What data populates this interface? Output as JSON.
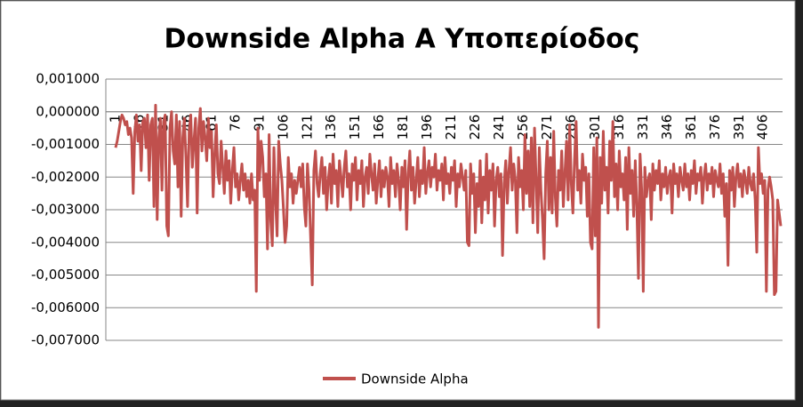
{
  "chart_data": {
    "type": "line",
    "title": "Downside Alpha A Υποπερίοδος",
    "categories": [
      "1",
      null,
      null,
      null,
      null,
      null,
      null,
      null,
      null,
      null,
      null,
      null,
      null,
      null,
      null,
      "16",
      null,
      null,
      null,
      null,
      null,
      null,
      null,
      null,
      null,
      null,
      null,
      null,
      null,
      null,
      "31",
      null,
      null,
      null,
      null,
      null,
      null,
      null,
      null,
      null,
      null,
      null,
      null,
      null,
      null,
      "46",
      null,
      null,
      null,
      null,
      null,
      null,
      null,
      null,
      null,
      null,
      null,
      null,
      null,
      null,
      "61",
      null,
      null,
      null,
      null,
      null,
      null,
      null,
      null,
      null,
      null,
      null,
      null,
      null,
      null,
      "76",
      null,
      null,
      null,
      null,
      null,
      null,
      null,
      null,
      null,
      null,
      null,
      null,
      null,
      null,
      "91",
      null,
      null,
      null,
      null,
      null,
      null,
      null,
      null,
      null,
      null,
      null,
      null,
      null,
      null,
      "106",
      null,
      null,
      null,
      null,
      null,
      null,
      null,
      null,
      null,
      null,
      null,
      null,
      null,
      null,
      "121",
      null,
      null,
      null,
      null,
      null,
      null,
      null,
      null,
      null,
      null,
      null,
      null,
      null,
      null,
      "136",
      null,
      null,
      null,
      null,
      null,
      null,
      null,
      null,
      null,
      null,
      null,
      null,
      null,
      null,
      "151",
      null,
      null,
      null,
      null,
      null,
      null,
      null,
      null,
      null,
      null,
      null,
      null,
      null,
      null,
      "166",
      null,
      null,
      null,
      null,
      null,
      null,
      null,
      null,
      null,
      null,
      null,
      null,
      null,
      null,
      "181",
      null,
      null,
      null,
      null,
      null,
      null,
      null,
      null,
      null,
      null,
      null,
      null,
      null,
      null,
      "196",
      null,
      null,
      null,
      null,
      null,
      null,
      null,
      null,
      null,
      null,
      null,
      null,
      null,
      null,
      "211",
      null,
      null,
      null,
      null,
      null,
      null,
      null,
      null,
      null,
      null,
      null,
      null,
      null,
      null,
      "226",
      null,
      null,
      null,
      null,
      null,
      null,
      null,
      null,
      null,
      null,
      null,
      null,
      null,
      null,
      "241",
      null,
      null,
      null,
      null,
      null,
      null,
      null,
      null,
      null,
      null,
      null,
      null,
      null,
      null,
      "256",
      null,
      null,
      null,
      null,
      null,
      null,
      null,
      null,
      null,
      null,
      null,
      null,
      null,
      null,
      "271",
      null,
      null,
      null,
      null,
      null,
      null,
      null,
      null,
      null,
      null,
      null,
      null,
      null,
      null,
      "286",
      null,
      null,
      null,
      null,
      null,
      null,
      null,
      null,
      null,
      null,
      null,
      null,
      null,
      null,
      "301",
      null,
      null,
      null,
      null,
      null,
      null,
      null,
      null,
      null,
      null,
      null,
      null,
      null,
      null,
      "316",
      null,
      null,
      null,
      null,
      null,
      null,
      null,
      null,
      null,
      null,
      null,
      null,
      null,
      null,
      "331",
      null,
      null,
      null,
      null,
      null,
      null,
      null,
      null,
      null,
      null,
      null,
      null,
      null,
      null,
      "346",
      null,
      null,
      null,
      null,
      null,
      null,
      null,
      null,
      null,
      null,
      null,
      null,
      null,
      null,
      "361",
      null,
      null,
      null,
      null,
      null,
      null,
      null,
      null,
      null,
      null,
      null,
      null,
      null,
      null,
      "376",
      null,
      null,
      null,
      null,
      null,
      null,
      null,
      null,
      null,
      null,
      null,
      null,
      null,
      null,
      "391",
      null,
      null,
      null,
      null,
      null,
      null,
      null,
      null,
      null,
      null,
      null,
      null,
      null,
      null,
      "406",
      null,
      null,
      null,
      null,
      null,
      null,
      null,
      null,
      null,
      null,
      null
    ],
    "series": [
      {
        "name": "Downside Alpha",
        "color": "#c0504d",
        "values": [
          -0.0011,
          -0.0009,
          -0.0006,
          -0.0003,
          -0.0001,
          -0.0002,
          -0.0004,
          -0.0003,
          -0.0007,
          -0.0005,
          -0.0008,
          -0.0025,
          -0.0006,
          -0.0001,
          -0.0009,
          -0.0004,
          -0.0018,
          -0.0003,
          -0.0002,
          -0.0011,
          -0.0001,
          -0.0021,
          -0.0004,
          -0.0002,
          -0.0029,
          0.0002,
          -0.0033,
          -0.0008,
          -0.0002,
          -0.0024,
          -0.0003,
          -0.0001,
          -0.0035,
          -0.0038,
          -0.0005,
          0,
          -0.0012,
          -0.0016,
          -0.0001,
          -0.0023,
          -0.0003,
          -0.0032,
          -0.0008,
          -0.0002,
          -0.0014,
          -0.0029,
          -0.0006,
          -0.0001,
          -0.0017,
          -0.0009,
          -0.0002,
          -0.0031,
          -0.0005,
          0.0001,
          -0.0012,
          -0.0003,
          -0.0008,
          -0.0015,
          -0.0002,
          -0.0011,
          -0.0006,
          -0.0026,
          -0.0013,
          -0.0004,
          -0.0019,
          -0.0022,
          -0.0009,
          -0.0017,
          -0.0025,
          -0.0012,
          -0.0021,
          -0.0015,
          -0.0028,
          -0.0018,
          -0.0011,
          -0.0023,
          -0.0019,
          -0.0027,
          -0.0021,
          -0.0016,
          -0.0024,
          -0.0019,
          -0.0026,
          -0.0021,
          -0.0028,
          -0.0019,
          -0.0027,
          -0.0024,
          -0.0055,
          -0.0005,
          -0.0021,
          -0.0009,
          -0.0014,
          -0.0026,
          -0.0019,
          -0.0042,
          -0.0007,
          -0.0033,
          -0.0041,
          -0.0011,
          -0.0027,
          -0.0038,
          -0.0009,
          -0.0016,
          -0.0021,
          -0.003,
          -0.004,
          -0.0035,
          -0.0014,
          -0.0023,
          -0.0019,
          -0.0028,
          -0.0021,
          -0.0025,
          -0.0021,
          -0.0017,
          -0.0023,
          -0.0016,
          -0.0029,
          -0.0035,
          -0.0016,
          -0.0024,
          -0.0039,
          -0.0053,
          -0.0018,
          -0.0012,
          -0.0022,
          -0.0026,
          -0.0019,
          -0.0014,
          -0.0025,
          -0.0017,
          -0.003,
          -0.0021,
          -0.0016,
          -0.0028,
          -0.0013,
          -0.0022,
          -0.0018,
          -0.0029,
          -0.0015,
          -0.002,
          -0.0026,
          -0.0017,
          -0.0012,
          -0.0023,
          -0.0019,
          -0.003,
          -0.0016,
          -0.0021,
          -0.0014,
          -0.0027,
          -0.0018,
          -0.0022,
          -0.0015,
          -0.0029,
          -0.002,
          -0.0017,
          -0.0025,
          -0.0013,
          -0.0019,
          -0.0024,
          -0.0016,
          -0.0028,
          -0.0021,
          -0.0015,
          -0.0026,
          -0.0018,
          -0.0023,
          -0.0017,
          -0.002,
          -0.0029,
          -0.0014,
          -0.0022,
          -0.0018,
          -0.0026,
          -0.0016,
          -0.0021,
          -0.003,
          -0.0017,
          -0.0023,
          -0.0015,
          -0.0036,
          -0.0019,
          -0.0012,
          -0.0024,
          -0.0017,
          -0.0028,
          -0.0021,
          -0.0014,
          -0.0026,
          -0.0018,
          -0.0022,
          -0.0011,
          -0.0025,
          -0.0019,
          -0.0015,
          -0.0023,
          -0.0017,
          -0.002,
          -0.0013,
          -0.0024,
          -0.0018,
          -0.0021,
          -0.0016,
          -0.0027,
          -0.0014,
          -0.0022,
          -0.0019,
          -0.0025,
          -0.0017,
          -0.0021,
          -0.0015,
          -0.0029,
          -0.0019,
          -0.0023,
          -0.0016,
          -0.002,
          -0.0024,
          -0.0018,
          -0.004,
          -0.0041,
          -0.0016,
          -0.0025,
          -0.0019,
          -0.0037,
          -0.0022,
          -0.0029,
          -0.0015,
          -0.0034,
          -0.002,
          -0.0027,
          -0.0013,
          -0.0031,
          -0.0018,
          -0.0024,
          -0.0016,
          -0.0035,
          -0.0021,
          -0.0017,
          -0.0026,
          -0.0019,
          -0.0044,
          -0.0022,
          -0.0015,
          -0.0028,
          -0.0018,
          -0.0011,
          -0.0024,
          -0.0016,
          -0.0021,
          -0.0037,
          -0.0014,
          -0.0023,
          -0.0018,
          -0.003,
          -0.0007,
          -0.0025,
          -0.0012,
          -0.0029,
          -0.0008,
          -0.0034,
          -0.0005,
          -0.0021,
          -0.0037,
          -0.0011,
          -0.0024,
          -0.0033,
          -0.0045,
          -0.0019,
          -0.0009,
          -0.003,
          -0.0014,
          -0.0031,
          -0.0006,
          -0.0026,
          -0.0035,
          -0.0018,
          -0.0024,
          -0.0012,
          -0.0029,
          -0.0019,
          -0.0009,
          -0.0027,
          -0.0004,
          -0.0022,
          -0.0031,
          -0.0015,
          -0.0003,
          -0.0024,
          -0.0018,
          -0.0028,
          -0.0013,
          -0.0021,
          -0.0017,
          -0.0032,
          -0.0019,
          -0.004,
          -0.0042,
          -0.0011,
          -0.0038,
          -0.0008,
          -0.0066,
          -0.0014,
          -0.0028,
          -0.0006,
          -0.0024,
          -0.0017,
          -0.0031,
          -0.0009,
          -0.0021,
          -0.0003,
          -0.0026,
          -0.0016,
          -0.003,
          -0.0012,
          -0.0023,
          -0.0019,
          -0.0027,
          -0.0014,
          -0.0036,
          -0.0011,
          -0.0025,
          -0.0018,
          -0.0032,
          -0.0015,
          -0.0029,
          -0.0051,
          -0.0013,
          -0.0024,
          -0.0055,
          -0.0017,
          -0.0026,
          -0.0021,
          -0.0019,
          -0.0033,
          -0.0016,
          -0.0024,
          -0.0018,
          -0.0022,
          -0.0015,
          -0.0027,
          -0.0019,
          -0.0023,
          -0.0017,
          -0.0025,
          -0.002,
          -0.0018,
          -0.0031,
          -0.0016,
          -0.0022,
          -0.0019,
          -0.0026,
          -0.0017,
          -0.0021,
          -0.0024,
          -0.0016,
          -0.0023,
          -0.0019,
          -0.0027,
          -0.0018,
          -0.0022,
          -0.0015,
          -0.0025,
          -0.0019,
          -0.0021,
          -0.0017,
          -0.0028,
          -0.002,
          -0.0016,
          -0.0024,
          -0.0019,
          -0.0022,
          -0.0017,
          -0.0026,
          -0.0018,
          -0.0021,
          -0.0023,
          -0.0016,
          -0.0025,
          -0.0019,
          -0.0032,
          -0.0022,
          -0.0047,
          -0.0018,
          -0.0024,
          -0.0017,
          -0.0029,
          -0.002,
          -0.0016,
          -0.0023,
          -0.0019,
          -0.0026,
          -0.0018,
          -0.0021,
          -0.0025,
          -0.0017,
          -0.0022,
          -0.0024,
          -0.0019,
          -0.0027,
          -0.0043,
          -0.0011,
          -0.0022,
          -0.0019,
          -0.0025,
          -0.0021,
          -0.0055,
          -0.0024,
          -0.002,
          -0.0023,
          -0.0027,
          -0.0056,
          -0.0055,
          -0.0027,
          -0.0031,
          -0.0035
        ]
      }
    ],
    "ylim": [
      -0.007,
      0.001
    ],
    "yticks": [
      {
        "value": 0.001,
        "label": "0,001000"
      },
      {
        "value": 0,
        "label": "0,000000"
      },
      {
        "value": -0.001,
        "label": "-0,001000"
      },
      {
        "value": -0.002,
        "label": "-0,002000"
      },
      {
        "value": -0.003,
        "label": "-0,003000"
      },
      {
        "value": -0.004,
        "label": "-0,004000"
      },
      {
        "value": -0.005,
        "label": "-0,005000"
      },
      {
        "value": -0.006,
        "label": "-0,006000"
      },
      {
        "value": -0.007,
        "label": "-0,007000"
      }
    ],
    "grid": true,
    "legend": "bottom"
  }
}
